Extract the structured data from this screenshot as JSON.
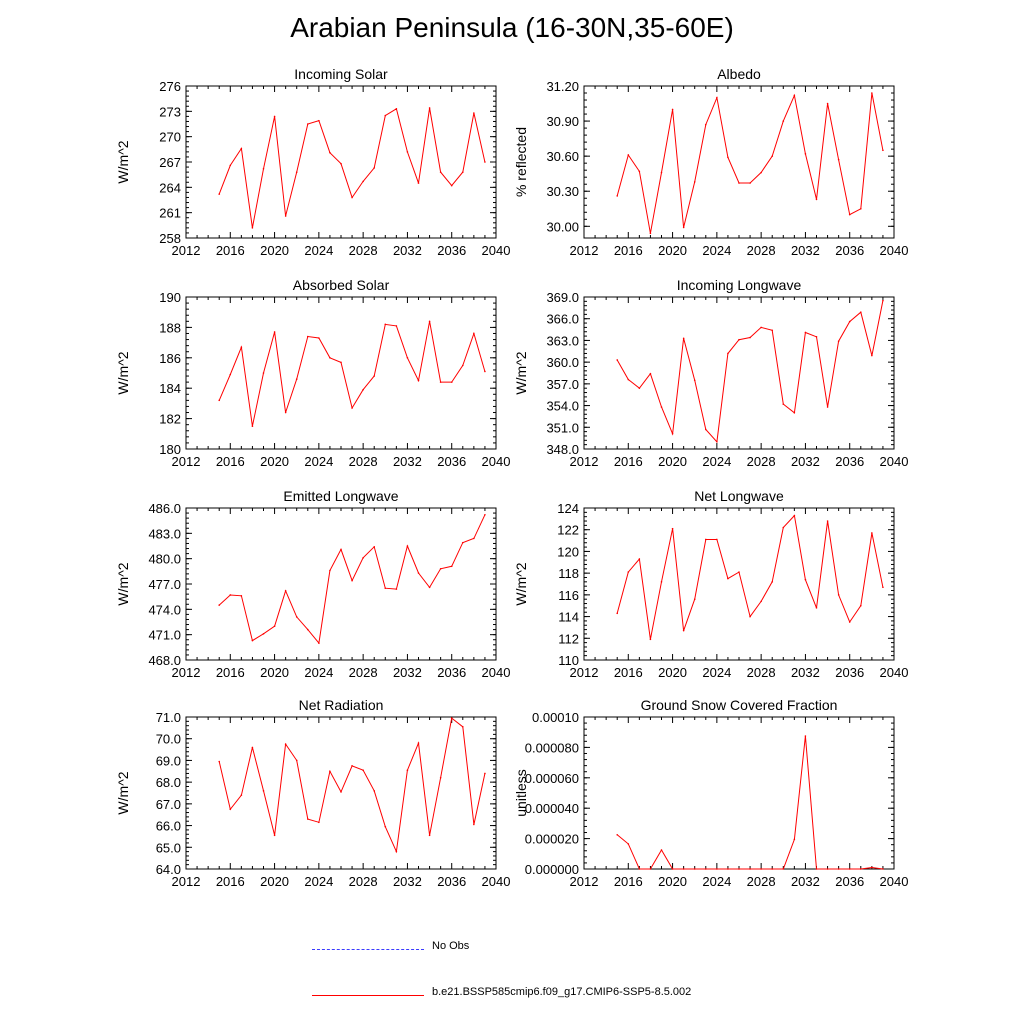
{
  "title": "Arabian Peninsula (16-30N,35-60E)",
  "colors": {
    "series": "#ff0000",
    "obs": "#3b3bff",
    "axis": "#000000"
  },
  "legend": {
    "entries": [
      {
        "label": "No Obs",
        "style": "dashed"
      },
      {
        "label": "b.e21.BSSP585cmip6.f09_g17.CMIP6-SSP5-8.5.002",
        "style": "solid"
      }
    ]
  },
  "chart_data": [
    {
      "type": "line",
      "title": "Incoming Solar",
      "ylabel": "W/m^2",
      "xlim": [
        2012,
        2040
      ],
      "xticks": [
        "2012",
        "2016",
        "2020",
        "2024",
        "2028",
        "2032",
        "2036",
        "2040"
      ],
      "ylim": [
        258,
        276
      ],
      "yticks": [
        "258",
        "261",
        "264",
        "267",
        "270",
        "273",
        "276"
      ],
      "x": [
        2015,
        2016,
        2017,
        2018,
        2019,
        2020,
        2021,
        2022,
        2023,
        2024,
        2025,
        2026,
        2027,
        2028,
        2029,
        2030,
        2031,
        2032,
        2033,
        2034,
        2035,
        2036,
        2037,
        2038,
        2039
      ],
      "values": [
        263.2,
        266.6,
        268.6,
        259.2,
        266.2,
        272.4,
        260.6,
        265.8,
        271.5,
        271.9,
        268.1,
        266.8,
        262.8,
        264.7,
        266.3,
        272.5,
        273.3,
        268.2,
        264.5,
        273.4,
        265.8,
        264.2,
        265.8,
        272.8,
        267.0
      ]
    },
    {
      "type": "line",
      "title": "Albedo",
      "ylabel": "% reflected",
      "xlim": [
        2012,
        2040
      ],
      "xticks": [
        "2012",
        "2016",
        "2020",
        "2024",
        "2028",
        "2032",
        "2036",
        "2040"
      ],
      "ylim": [
        29.9,
        31.2
      ],
      "yticks": [
        "30.00",
        "30.30",
        "30.60",
        "30.90",
        "31.20"
      ],
      "x": [
        2015,
        2016,
        2017,
        2018,
        2019,
        2020,
        2021,
        2022,
        2023,
        2024,
        2025,
        2026,
        2027,
        2028,
        2029,
        2030,
        2031,
        2032,
        2033,
        2034,
        2035,
        2036,
        2037,
        2038,
        2039
      ],
      "values": [
        30.26,
        30.61,
        30.47,
        29.94,
        30.46,
        31.0,
        29.99,
        30.38,
        30.87,
        31.1,
        30.59,
        30.37,
        30.37,
        30.46,
        30.6,
        30.9,
        31.12,
        30.62,
        30.23,
        31.05,
        30.57,
        30.1,
        30.15,
        31.14,
        30.65
      ]
    },
    {
      "type": "line",
      "title": "Absorbed Solar",
      "ylabel": "W/m^2",
      "xlim": [
        2012,
        2040
      ],
      "xticks": [
        "2012",
        "2016",
        "2020",
        "2024",
        "2028",
        "2032",
        "2036",
        "2040"
      ],
      "ylim": [
        180,
        190
      ],
      "yticks": [
        "180",
        "182",
        "184",
        "186",
        "188",
        "190"
      ],
      "x": [
        2015,
        2016,
        2017,
        2018,
        2019,
        2020,
        2021,
        2022,
        2023,
        2024,
        2025,
        2026,
        2027,
        2028,
        2029,
        2030,
        2031,
        2032,
        2033,
        2034,
        2035,
        2036,
        2037,
        2038,
        2039
      ],
      "values": [
        183.2,
        184.9,
        186.7,
        181.5,
        185.0,
        187.7,
        182.4,
        184.6,
        187.4,
        187.3,
        186.0,
        185.7,
        182.7,
        183.9,
        184.8,
        188.2,
        188.1,
        186.0,
        184.5,
        188.4,
        184.4,
        184.4,
        185.5,
        187.6,
        185.1
      ]
    },
    {
      "type": "line",
      "title": "Incoming Longwave",
      "ylabel": "W/m^2",
      "xlim": [
        2012,
        2040
      ],
      "xticks": [
        "2012",
        "2016",
        "2020",
        "2024",
        "2028",
        "2032",
        "2036",
        "2040"
      ],
      "ylim": [
        348,
        369
      ],
      "yticks": [
        "348.0",
        "351.0",
        "354.0",
        "357.0",
        "360.0",
        "363.0",
        "366.0",
        "369.0"
      ],
      "x": [
        2015,
        2016,
        2017,
        2018,
        2019,
        2020,
        2021,
        2022,
        2023,
        2024,
        2025,
        2026,
        2027,
        2028,
        2029,
        2030,
        2031,
        2032,
        2033,
        2034,
        2035,
        2036,
        2037,
        2038,
        2039
      ],
      "values": [
        360.3,
        357.6,
        356.4,
        358.4,
        353.8,
        350.1,
        363.3,
        357.5,
        350.7,
        349.0,
        361.2,
        363.1,
        363.4,
        364.8,
        364.4,
        354.2,
        353.0,
        364.1,
        363.5,
        353.8,
        362.9,
        365.6,
        366.9,
        360.9,
        368.5
      ]
    },
    {
      "type": "line",
      "title": "Emitted Longwave",
      "ylabel": "W/m^2",
      "xlim": [
        2012,
        2040
      ],
      "xticks": [
        "2012",
        "2016",
        "2020",
        "2024",
        "2028",
        "2032",
        "2036",
        "2040"
      ],
      "ylim": [
        468,
        486
      ],
      "yticks": [
        "468.0",
        "471.0",
        "474.0",
        "477.0",
        "480.0",
        "483.0",
        "486.0"
      ],
      "x": [
        2015,
        2016,
        2017,
        2018,
        2019,
        2020,
        2021,
        2022,
        2023,
        2024,
        2025,
        2026,
        2027,
        2028,
        2029,
        2030,
        2031,
        2032,
        2033,
        2034,
        2035,
        2036,
        2037,
        2038,
        2039
      ],
      "values": [
        474.5,
        475.7,
        475.6,
        470.3,
        471.1,
        472.0,
        476.2,
        473.1,
        471.6,
        470.0,
        478.6,
        481.1,
        477.4,
        480.1,
        481.4,
        476.5,
        476.4,
        481.5,
        478.3,
        476.6,
        478.8,
        479.1,
        481.9,
        482.4,
        485.2
      ]
    },
    {
      "type": "line",
      "title": "Net Longwave",
      "ylabel": "W/m^2",
      "xlim": [
        2012,
        2040
      ],
      "xticks": [
        "2012",
        "2016",
        "2020",
        "2024",
        "2028",
        "2032",
        "2036",
        "2040"
      ],
      "ylim": [
        110,
        124
      ],
      "yticks": [
        "110",
        "112",
        "114",
        "116",
        "118",
        "120",
        "122",
        "124"
      ],
      "x": [
        2015,
        2016,
        2017,
        2018,
        2019,
        2020,
        2021,
        2022,
        2023,
        2024,
        2025,
        2026,
        2027,
        2028,
        2029,
        2030,
        2031,
        2032,
        2033,
        2034,
        2035,
        2036,
        2037,
        2038,
        2039
      ],
      "values": [
        114.3,
        118.1,
        119.3,
        111.9,
        117.2,
        122.1,
        112.7,
        115.6,
        121.1,
        121.1,
        117.5,
        118.1,
        114.0,
        115.4,
        117.2,
        122.2,
        123.3,
        117.4,
        114.8,
        122.8,
        116.0,
        113.5,
        115.0,
        121.7,
        116.7
      ]
    },
    {
      "type": "line",
      "title": "Net Radiation",
      "ylabel": "W/m^2",
      "xlim": [
        2012,
        2040
      ],
      "xticks": [
        "2012",
        "2016",
        "2020",
        "2024",
        "2028",
        "2032",
        "2036",
        "2040"
      ],
      "ylim": [
        64,
        71
      ],
      "yticks": [
        "64.0",
        "65.0",
        "66.0",
        "67.0",
        "68.0",
        "69.0",
        "70.0",
        "71.0"
      ],
      "x": [
        2015,
        2016,
        2017,
        2018,
        2019,
        2020,
        2021,
        2022,
        2023,
        2024,
        2025,
        2026,
        2027,
        2028,
        2029,
        2030,
        2031,
        2032,
        2033,
        2034,
        2035,
        2036,
        2037,
        2038,
        2039
      ],
      "values": [
        68.95,
        66.75,
        67.4,
        69.6,
        67.6,
        65.55,
        69.75,
        69.0,
        66.3,
        66.15,
        68.5,
        67.55,
        68.75,
        68.55,
        67.6,
        65.95,
        64.8,
        68.55,
        69.8,
        65.55,
        68.2,
        70.95,
        70.55,
        66.05,
        68.4
      ]
    },
    {
      "type": "line",
      "title": "Ground Snow Covered Fraction",
      "ylabel": "unitless",
      "xlim": [
        2012,
        2040
      ],
      "xticks": [
        "2012",
        "2016",
        "2020",
        "2024",
        "2028",
        "2032",
        "2036",
        "2040"
      ],
      "ylim": [
        0,
        0.0001
      ],
      "yticks": [
        "0.000000",
        "0.000020",
        "0.000040",
        "0.000060",
        "0.000080",
        "0.00010"
      ],
      "x": [
        2015,
        2016,
        2017,
        2018,
        2019,
        2020,
        2021,
        2022,
        2023,
        2024,
        2025,
        2026,
        2027,
        2028,
        2029,
        2030,
        2031,
        2032,
        2033,
        2034,
        2035,
        2036,
        2037,
        2038,
        2039
      ],
      "values": [
        2.25e-05,
        1.65e-05,
        0.0,
        0.0,
        1.25e-05,
        0.0,
        0.0,
        0.0,
        0.0,
        0.0,
        0.0,
        0.0,
        0.0,
        0.0,
        0.0,
        0.0,
        1.95e-05,
        8.75e-05,
        0.0,
        0.0,
        0.0,
        0.0,
        0.0,
        1e-06,
        0.0
      ]
    }
  ]
}
